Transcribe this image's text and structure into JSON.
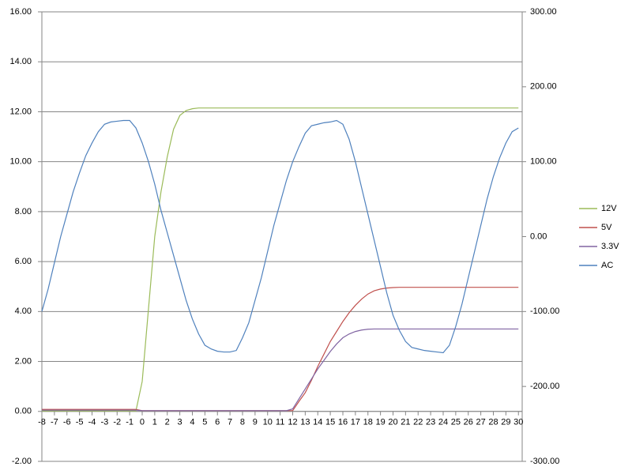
{
  "chart_data": {
    "type": "line",
    "x": [
      -8,
      -7.5,
      -7,
      -6.5,
      -6,
      -5.5,
      -5,
      -4.5,
      -4,
      -3.5,
      -3,
      -2.5,
      -2,
      -1.5,
      -1,
      -0.5,
      0,
      0.5,
      1,
      1.5,
      2,
      2.5,
      3,
      3.5,
      4,
      4.5,
      5,
      5.5,
      6,
      6.5,
      7,
      7.5,
      8,
      8.5,
      9,
      9.5,
      10,
      10.5,
      11,
      11.5,
      12,
      12.5,
      13,
      13.5,
      14,
      14.5,
      15,
      15.5,
      16,
      16.5,
      17,
      17.5,
      18,
      18.5,
      19,
      19.5,
      20,
      20.5,
      21,
      21.5,
      22,
      22.5,
      23,
      23.5,
      24,
      24.5,
      25,
      25.5,
      26,
      26.5,
      27,
      27.5,
      28,
      28.5,
      29,
      29.5,
      30
    ],
    "xlim": [
      -8,
      30.3
    ],
    "xticks": [
      -8,
      -7,
      -6,
      -5,
      -4,
      -3,
      -2,
      -1,
      0,
      1,
      2,
      3,
      4,
      5,
      6,
      7,
      8,
      9,
      10,
      11,
      12,
      13,
      14,
      15,
      16,
      17,
      18,
      19,
      20,
      21,
      22,
      23,
      24,
      25,
      26,
      27,
      28,
      29,
      30
    ],
    "ylim": [
      -2,
      16
    ],
    "yticks": [
      {
        "value": -2,
        "label": "-2.00"
      },
      {
        "value": 0,
        "label": "0.00"
      },
      {
        "value": 2,
        "label": "2.00"
      },
      {
        "value": 4,
        "label": "4.00"
      },
      {
        "value": 6,
        "label": "6.00"
      },
      {
        "value": 8,
        "label": "8.00"
      },
      {
        "value": 10,
        "label": "10.00"
      },
      {
        "value": 12,
        "label": "12.00"
      },
      {
        "value": 14,
        "label": "14.00"
      },
      {
        "value": 16,
        "label": "16.00"
      }
    ],
    "y2lim": [
      -300,
      300
    ],
    "y2ticks": [
      {
        "value": -300,
        "label": "-300.00"
      },
      {
        "value": -200,
        "label": "-200.00"
      },
      {
        "value": -100,
        "label": "-100.00"
      },
      {
        "value": 0,
        "label": "0.00"
      },
      {
        "value": 100,
        "label": "100.00"
      },
      {
        "value": 200,
        "label": "200.00"
      },
      {
        "value": 300,
        "label": "300.00"
      }
    ],
    "grid": true,
    "legend": "right",
    "series": [
      {
        "name": "12V",
        "color": "#9bbb59",
        "values": [
          0.02,
          0.02,
          0.02,
          0.02,
          0.02,
          0.02,
          0.02,
          0.02,
          0.02,
          0.02,
          0.02,
          0.02,
          0.02,
          0.02,
          0.02,
          0.02,
          1.2,
          4.1,
          7.0,
          8.8,
          10.2,
          11.3,
          11.85,
          12.05,
          12.12,
          12.15,
          12.15,
          12.15,
          12.15,
          12.15,
          12.15,
          12.15,
          12.15,
          12.15,
          12.15,
          12.15,
          12.15,
          12.15,
          12.15,
          12.15,
          12.15,
          12.15,
          12.15,
          12.15,
          12.15,
          12.15,
          12.15,
          12.15,
          12.15,
          12.15,
          12.15,
          12.15,
          12.15,
          12.15,
          12.15,
          12.15,
          12.15,
          12.15,
          12.15,
          12.15,
          12.15,
          12.15,
          12.15,
          12.15,
          12.15,
          12.15,
          12.15,
          12.15,
          12.15,
          12.15,
          12.15,
          12.15,
          12.15,
          12.15,
          12.15,
          12.15,
          12.15
        ]
      },
      {
        "name": "5V",
        "color": "#c0504d",
        "values": [
          0.08,
          0.08,
          0.08,
          0.08,
          0.08,
          0.08,
          0.08,
          0.08,
          0.08,
          0.08,
          0.08,
          0.08,
          0.08,
          0.08,
          0.08,
          0.08,
          0.03,
          0.03,
          0.03,
          0.03,
          0.03,
          0.03,
          0.03,
          0.03,
          0.03,
          0.03,
          0.03,
          0.03,
          0.03,
          0.03,
          0.03,
          0.03,
          0.03,
          0.03,
          0.03,
          0.03,
          0.03,
          0.03,
          0.03,
          0.03,
          0.03,
          0.4,
          0.75,
          1.25,
          1.8,
          2.3,
          2.8,
          3.2,
          3.6,
          3.95,
          4.25,
          4.5,
          4.7,
          4.83,
          4.9,
          4.94,
          4.96,
          4.97,
          4.97,
          4.97,
          4.97,
          4.97,
          4.97,
          4.97,
          4.97,
          4.97,
          4.97,
          4.97,
          4.97,
          4.97,
          4.97,
          4.97,
          4.97,
          4.97,
          4.97,
          4.97,
          4.97
        ]
      },
      {
        "name": "3.3V",
        "color": "#8064a2",
        "values": [
          0.05,
          0.05,
          0.05,
          0.05,
          0.05,
          0.05,
          0.05,
          0.05,
          0.05,
          0.05,
          0.05,
          0.05,
          0.05,
          0.05,
          0.05,
          0.05,
          0.03,
          0.03,
          0.03,
          0.03,
          0.03,
          0.03,
          0.03,
          0.03,
          0.03,
          0.03,
          0.03,
          0.03,
          0.03,
          0.03,
          0.03,
          0.03,
          0.03,
          0.03,
          0.03,
          0.03,
          0.03,
          0.03,
          0.03,
          0.03,
          0.1,
          0.5,
          0.9,
          1.3,
          1.7,
          2.05,
          2.4,
          2.7,
          2.95,
          3.1,
          3.2,
          3.26,
          3.29,
          3.3,
          3.3,
          3.3,
          3.3,
          3.3,
          3.3,
          3.3,
          3.3,
          3.3,
          3.3,
          3.3,
          3.3,
          3.3,
          3.3,
          3.3,
          3.3,
          3.3,
          3.3,
          3.3,
          3.3,
          3.3,
          3.3,
          3.3,
          3.3
        ]
      },
      {
        "name": "AC",
        "color": "#4f81bd",
        "axis": "y2",
        "values": [
          -100,
          -70,
          -35,
          0,
          30,
          60,
          85,
          108,
          125,
          140,
          150,
          153,
          154,
          155,
          155,
          145,
          125,
          100,
          70,
          35,
          5,
          -25,
          -55,
          -85,
          -110,
          -130,
          -145,
          -150,
          -153,
          -154,
          -154,
          -152,
          -135,
          -115,
          -85,
          -55,
          -20,
          15,
          45,
          75,
          100,
          120,
          138,
          148,
          150,
          152,
          153,
          155,
          150,
          130,
          100,
          65,
          30,
          -5,
          -40,
          -75,
          -105,
          -125,
          -140,
          -148,
          -150,
          -152,
          -153,
          -154,
          -155,
          -145,
          -120,
          -90,
          -55,
          -20,
          15,
          50,
          80,
          105,
          125,
          140,
          145
        ]
      }
    ]
  }
}
